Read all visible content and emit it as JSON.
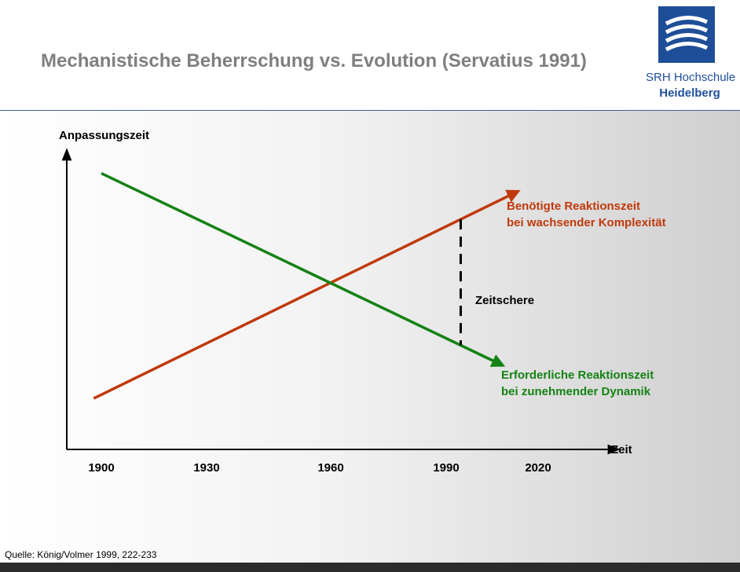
{
  "header": {
    "title": "Mechanistische Beherrschung vs. Evolution (Servatius 1991)",
    "logo_line1": "SRH Hochschule",
    "logo_line2": "Heidelberg",
    "logo_color": "#1f4e99"
  },
  "chart_data": {
    "type": "line",
    "xlabel": "Zeit",
    "ylabel": "Anpassungszeit",
    "x_ticks": [
      "1900",
      "1930",
      "1960",
      "1990",
      "2020"
    ],
    "xlim": [
      1890,
      2030
    ],
    "ylim": [
      0,
      100
    ],
    "grid": false,
    "series": [
      {
        "name": "Benötigte Reaktionszeit bei wachsender Komplexität",
        "color": "#c0390b",
        "points": [
          [
            1898,
            17
          ],
          [
            2009,
            86
          ]
        ]
      },
      {
        "name": "Erforderliche Reaktionszeit bei zunehmender Dynamik",
        "color": "#148214",
        "points": [
          [
            1900,
            92
          ],
          [
            2005,
            28
          ]
        ]
      }
    ],
    "annotations": {
      "red_line1": "Benötigte Reaktionszeit",
      "red_line2": "bei wachsender Komplexität",
      "green_line1": "Erforderliche Reaktionszeit",
      "green_line2": "bei zunehmender Dynamik",
      "gap_label": "Zeitschere",
      "gap_x": 1994
    }
  },
  "footer": {
    "source": "Quelle: König/Volmer 1999, 222-233"
  }
}
